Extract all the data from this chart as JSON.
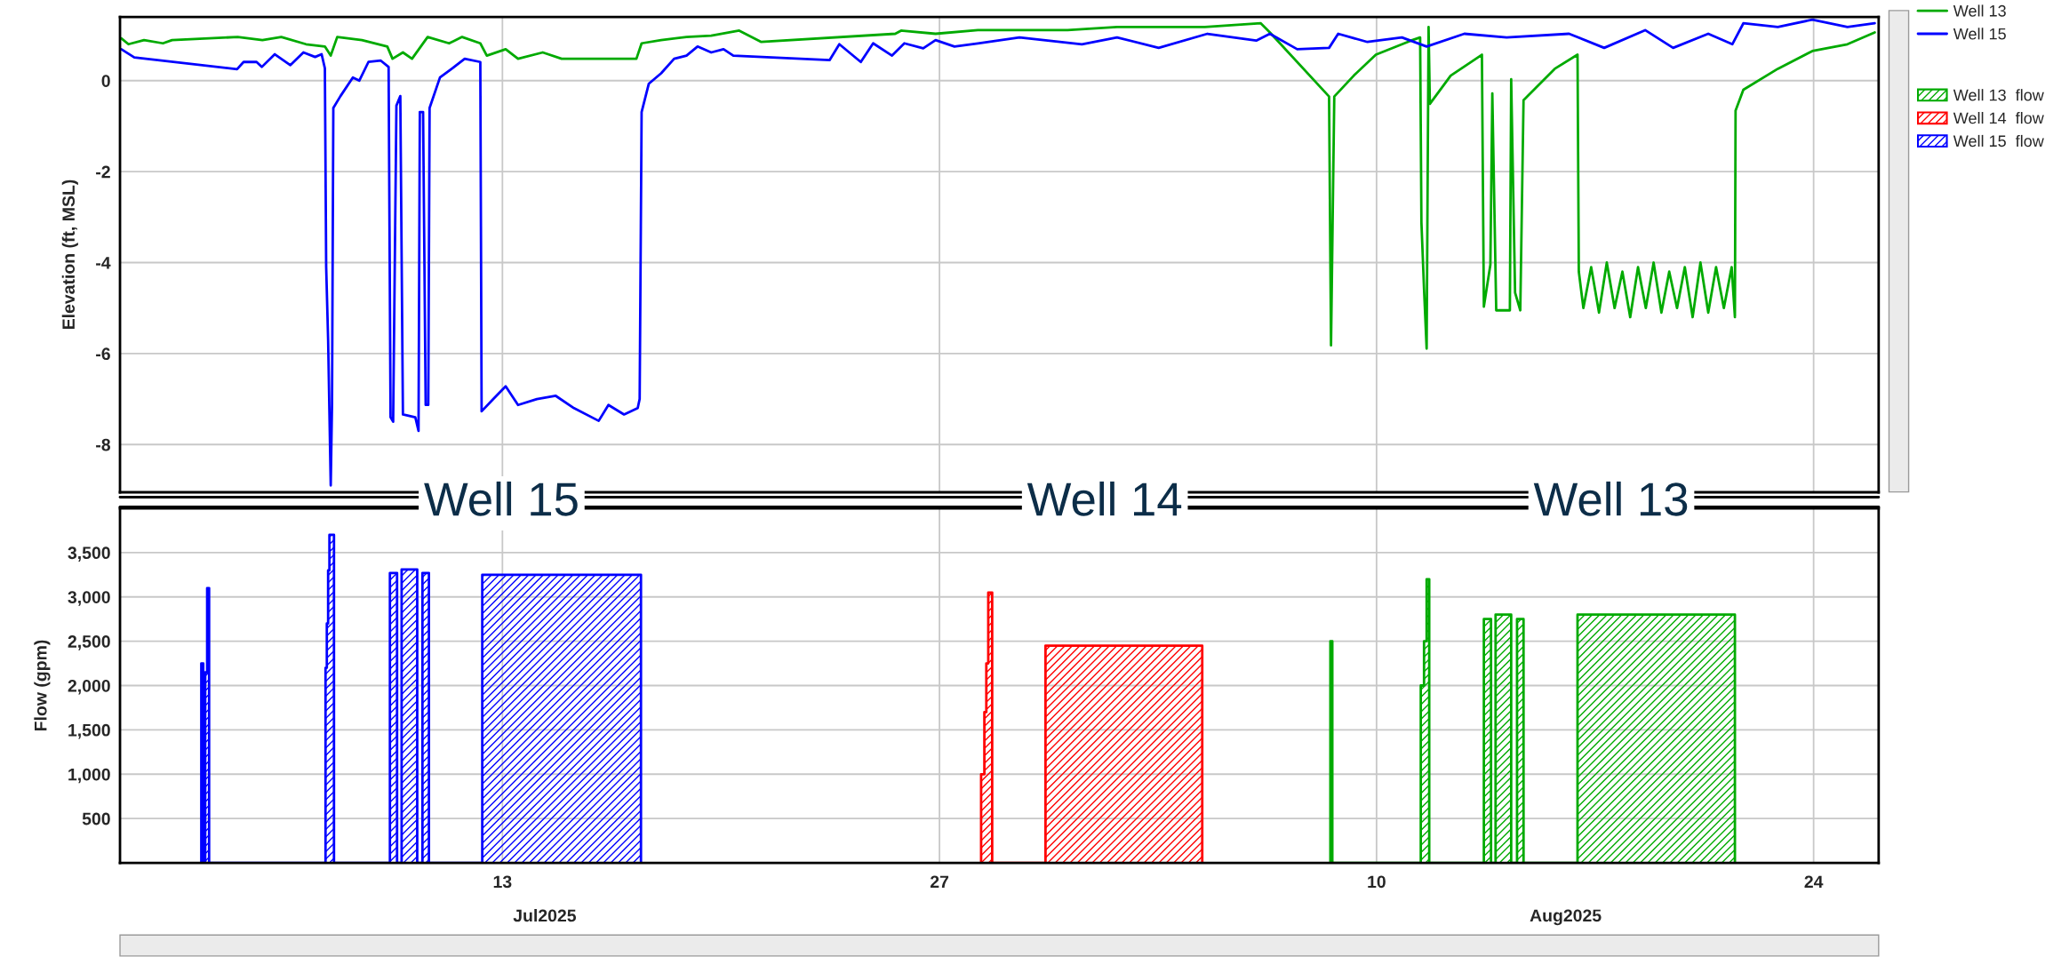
{
  "chart_data": [
    {
      "type": "line",
      "ylabel": "Elevation (ft, MSL)",
      "xlim": [
        "2025-06-30T18:00",
        "2025-08-26T02:00"
      ],
      "xticks": [
        {
          "value": "2025-07-13",
          "label": null
        },
        {
          "value": "2025-07-27",
          "label": null
        },
        {
          "value": "2025-08-10",
          "label": null
        },
        {
          "value": "2025-08-24",
          "label": null
        }
      ],
      "ylim": [
        -9.05,
        1.4
      ],
      "yticks": [
        -8,
        -6,
        -4,
        -2,
        0
      ],
      "grid": true,
      "legend": "right",
      "tick_labels": "y",
      "annotations": [
        "Well 15",
        "Well 14",
        "Well 13"
      ],
      "series": [
        {
          "name": "Well 13",
          "color": "#00aa00",
          "x": [
            "2025-06-30T19:00",
            "2025-07-01T00:30",
            "2025-07-01T12:30",
            "2025-07-02T03:00",
            "2025-07-02T10:00",
            "2025-07-04T12:30",
            "2025-07-05T07:30",
            "2025-07-05T22:00",
            "2025-07-06T17:00",
            "2025-07-07T07:30",
            "2025-07-07T12:00",
            "2025-07-07T17:00",
            "2025-07-08T12:00",
            "2025-07-09T07:30",
            "2025-07-09T11:30",
            "2025-07-09T19:30",
            "2025-07-10T02:30",
            "2025-07-10T14:30",
            "2025-07-11T07:00",
            "2025-07-11T17:00",
            "2025-07-12T07:00",
            "2025-07-12T12:00",
            "2025-07-13T02:30",
            "2025-07-13T12:00",
            "2025-07-14T07:00",
            "2025-07-14T21:30",
            "2025-07-16T02:00",
            "2025-07-17T07:00",
            "2025-07-17T11:00",
            "2025-07-18T02:00",
            "2025-07-18T21:30",
            "2025-07-19T16:30",
            "2025-07-20T14:00",
            "2025-07-21T07:00",
            "2025-07-25T14:00",
            "2025-07-25T18:30",
            "2025-07-26T21:00",
            "2025-07-28T05:30",
            "2025-07-31T02:30",
            "2025-08-01T16:30",
            "2025-08-04T12:00",
            "2025-08-06T07:00",
            "2025-08-06T14:00",
            "2025-08-08T11:30",
            "2025-08-08T13:00",
            "2025-08-08T15:30",
            "2025-08-09T06:30",
            "2025-08-09T23:30",
            "2025-08-11T02:30",
            "2025-08-11T09:30",
            "2025-08-11T10:30",
            "2025-08-11T12:30",
            "2025-08-11T14:30",
            "2025-08-11T16:00",
            "2025-08-11T17:00",
            "2025-08-12T09:00",
            "2025-08-13T09:00",
            "2025-08-13T10:30",
            "2025-08-13T15:30",
            "2025-08-13T17:00",
            "2025-08-13T20:00",
            "2025-08-14T06:30",
            "2025-08-14T07:30",
            "2025-08-14T10:30",
            "2025-08-14T14:30",
            "2025-08-14T17:00",
            "2025-08-15T01:00",
            "2025-08-15T17:00",
            "2025-08-16T10:30",
            "2025-08-16T11:30",
            "2025-08-16T15:00",
            "2025-08-16T21:00",
            "2025-08-17T03:00",
            "2025-08-17T09:00",
            "2025-08-17T15:00",
            "2025-08-17T21:00",
            "2025-08-18T03:00",
            "2025-08-18T09:00",
            "2025-08-18T15:00",
            "2025-08-18T21:00",
            "2025-08-19T03:00",
            "2025-08-19T09:00",
            "2025-08-19T15:00",
            "2025-08-19T21:00",
            "2025-08-20T03:00",
            "2025-08-20T09:00",
            "2025-08-20T15:00",
            "2025-08-20T21:00",
            "2025-08-21T03:00",
            "2025-08-21T09:00",
            "2025-08-21T11:30",
            "2025-08-21T12:00",
            "2025-08-21T18:00",
            "2025-08-22T20:30",
            "2025-08-23T23:00",
            "2025-08-25T02:00",
            "2025-08-25T23:00"
          ],
          "values": [
            0.93,
            0.8,
            0.89,
            0.82,
            0.89,
            0.96,
            0.89,
            0.96,
            0.8,
            0.75,
            0.55,
            0.96,
            0.89,
            0.75,
            0.48,
            0.62,
            0.48,
            0.96,
            0.82,
            0.96,
            0.82,
            0.55,
            0.69,
            0.48,
            0.62,
            0.48,
            0.48,
            0.48,
            0.82,
            0.89,
            0.96,
            0.99,
            1.1,
            0.85,
            1.03,
            1.1,
            1.03,
            1.11,
            1.11,
            1.18,
            1.18,
            1.26,
            1.06,
            -0.35,
            -5.82,
            -0.35,
            0.11,
            0.57,
            0.88,
            0.95,
            -3.12,
            -4.58,
            -5.89,
            1.18,
            -0.51,
            0.11,
            0.57,
            -4.97,
            -4.05,
            -0.28,
            -5.05,
            -5.05,
            0.03,
            -4.66,
            -5.05,
            -0.43,
            -0.2,
            0.26,
            0.57,
            -4.2,
            -5.0,
            -4.1,
            -5.1,
            -4.0,
            -5.0,
            -4.2,
            -5.2,
            -4.1,
            -5.0,
            -4.0,
            -5.1,
            -4.2,
            -5.0,
            -4.1,
            -5.2,
            -4.0,
            -5.1,
            -4.1,
            -5.0,
            -4.1,
            -5.2,
            -0.66,
            -0.2,
            0.26,
            0.65,
            0.8,
            1.06
          ]
        },
        {
          "name": "Well 15",
          "color": "#0000ff",
          "x": [
            "2025-06-30T19:00",
            "2025-07-01T05:00",
            "2025-07-04T12:00",
            "2025-07-04T17:00",
            "2025-07-05T03:00",
            "2025-07-05T07:00",
            "2025-07-05T17:00",
            "2025-07-06T05:00",
            "2025-07-06T15:00",
            "2025-07-07T00:00",
            "2025-07-07T05:00",
            "2025-07-07T07:30",
            "2025-07-07T08:30",
            "2025-07-07T10:00",
            "2025-07-07T11:00",
            "2025-07-07T12:00",
            "2025-07-07T13:00",
            "2025-07-07T14:00",
            "2025-07-07T19:30",
            "2025-07-08T05:00",
            "2025-07-08T10:00",
            "2025-07-08T17:00",
            "2025-07-09T02:30",
            "2025-07-09T08:30",
            "2025-07-09T10:00",
            "2025-07-09T12:00",
            "2025-07-09T14:30",
            "2025-07-09T17:30",
            "2025-07-09T19:30",
            "2025-07-10T05:00",
            "2025-07-10T07:30",
            "2025-07-10T08:30",
            "2025-07-10T11:00",
            "2025-07-10T13:00",
            "2025-07-10T15:00",
            "2025-07-10T16:00",
            "2025-07-11T00:00",
            "2025-07-11T09:30",
            "2025-07-11T19:00",
            "2025-07-12T07:00",
            "2025-07-12T08:00",
            "2025-07-12T17:00",
            "2025-07-13T02:30",
            "2025-07-13T12:00",
            "2025-07-14T02:30",
            "2025-07-14T17:00",
            "2025-07-15T07:00",
            "2025-07-16T02:00",
            "2025-07-16T09:30",
            "2025-07-16T21:30",
            "2025-07-17T08:00",
            "2025-07-17T09:30",
            "2025-07-17T11:00",
            "2025-07-17T16:30",
            "2025-07-18T02:00",
            "2025-07-18T12:00",
            "2025-07-18T21:30",
            "2025-07-19T06:00",
            "2025-07-19T16:30",
            "2025-07-20T02:00",
            "2025-07-20T09:30",
            "2025-07-23T11:30",
            "2025-07-23T19:00",
            "2025-07-24T11:30",
            "2025-07-24T21:00",
            "2025-07-25T11:30",
            "2025-07-25T21:00",
            "2025-07-26T11:30",
            "2025-07-26T21:00",
            "2025-07-27T11:30",
            "2025-07-28T05:30",
            "2025-07-29T13:30",
            "2025-07-31T13:30",
            "2025-08-01T16:30",
            "2025-08-03T00:30",
            "2025-08-04T14:00",
            "2025-08-06T03:30",
            "2025-08-06T14:00",
            "2025-08-07T11:00",
            "2025-08-08T11:30",
            "2025-08-08T18:30",
            "2025-08-09T17:00",
            "2025-08-10T19:30",
            "2025-08-11T14:30",
            "2025-08-12T19:30",
            "2025-08-14T04:00",
            "2025-08-16T04:00",
            "2025-08-17T07:00",
            "2025-08-18T14:30",
            "2025-08-19T12:00",
            "2025-08-20T15:00",
            "2025-08-21T09:30",
            "2025-08-21T18:00",
            "2025-08-22T20:30",
            "2025-08-23T23:00",
            "2025-08-25T02:00",
            "2025-08-25T23:00"
          ],
          "values": [
            0.69,
            0.51,
            0.25,
            0.41,
            0.41,
            0.3,
            0.58,
            0.34,
            0.62,
            0.52,
            0.58,
            0.27,
            -4.1,
            -5.7,
            -7.3,
            -8.9,
            -7.1,
            -0.6,
            -0.34,
            0.07,
            0.0,
            0.41,
            0.44,
            0.3,
            -7.4,
            -7.5,
            -0.55,
            -0.34,
            -7.34,
            -7.4,
            -7.7,
            -0.69,
            -0.69,
            -7.13,
            -7.13,
            -0.6,
            0.07,
            0.27,
            0.48,
            0.41,
            -7.27,
            -7.0,
            -6.72,
            -7.13,
            -7.0,
            -6.93,
            -7.2,
            -7.48,
            -7.13,
            -7.34,
            -7.2,
            -7.0,
            -0.69,
            -0.07,
            0.16,
            0.48,
            0.55,
            0.75,
            0.62,
            0.69,
            0.55,
            0.45,
            0.8,
            0.41,
            0.82,
            0.55,
            0.82,
            0.71,
            0.89,
            0.75,
            0.82,
            0.95,
            0.8,
            0.95,
            0.72,
            1.03,
            0.88,
            1.03,
            0.69,
            0.72,
            1.03,
            0.85,
            0.95,
            0.75,
            1.03,
            0.95,
            1.03,
            0.72,
            1.11,
            0.72,
            1.03,
            0.8,
            1.26,
            1.18,
            1.34,
            1.18,
            1.26
          ]
        }
      ]
    },
    {
      "type": "area",
      "ylabel": "Flow (gpm)",
      "xlim": [
        "2025-06-30T18:00",
        "2025-08-26T02:00"
      ],
      "xticks": [
        {
          "value": "2025-07-13",
          "label": "13"
        },
        {
          "value": "2025-07-27",
          "label": "27"
        },
        {
          "value": "2025-08-10",
          "label": "10"
        },
        {
          "value": "2025-08-24",
          "label": "24"
        }
      ],
      "ylim": [
        0,
        4000
      ],
      "yticks": [
        {
          "value": 500,
          "label": "500"
        },
        {
          "value": 1000,
          "label": "1,000"
        },
        {
          "value": 1500,
          "label": "1,500"
        },
        {
          "value": 2000,
          "label": "2,000"
        },
        {
          "value": 2500,
          "label": "2,500"
        },
        {
          "value": 3000,
          "label": "3,000"
        },
        {
          "value": 3500,
          "label": "3,500"
        }
      ],
      "grid": true,
      "legend": "right",
      "annotations": [
        "Jul2025",
        "Aug2025"
      ],
      "series": [
        {
          "name": "Well 13  flow",
          "color": "#00aa00",
          "x": [
            "2025-08-08T12:30",
            "2025-08-08T14:00",
            "2025-08-11T10:00",
            "2025-08-11T12:30",
            "2025-08-11T14:30",
            "2025-08-11T16:30",
            "2025-08-13T10:30",
            "2025-08-13T16:00",
            "2025-08-13T19:30",
            "2025-08-14T07:30",
            "2025-08-14T12:00",
            "2025-08-14T17:00",
            "2025-08-16T10:30",
            "2025-08-21T11:30"
          ],
          "values": [
            2500,
            0,
            2000,
            2500,
            3200,
            0,
            2750,
            0,
            2800,
            0,
            2750,
            0,
            2800,
            0
          ]
        },
        {
          "name": "Well 14  flow",
          "color": "#ff0000",
          "x": [
            "2025-07-28T08:00",
            "2025-07-28T10:30",
            "2025-07-28T12:00",
            "2025-07-28T13:30",
            "2025-07-28T16:30",
            "2025-07-30T09:30",
            "2025-08-04T10:00"
          ],
          "values": [
            1000,
            1700,
            2250,
            3050,
            0,
            2450,
            0
          ]
        },
        {
          "name": "Well 15  flow",
          "color": "#0000ff",
          "x": [
            "2025-07-03T08:30",
            "2025-07-03T10:00",
            "2025-07-03T11:30",
            "2025-07-03T13:00",
            "2025-07-03T14:30",
            "2025-07-07T08:00",
            "2025-07-07T09:00",
            "2025-07-07T10:00",
            "2025-07-07T11:00",
            "2025-07-07T14:30",
            "2025-07-09T09:30",
            "2025-07-09T15:00",
            "2025-07-09T18:30",
            "2025-07-10T06:30",
            "2025-07-10T10:30",
            "2025-07-10T15:30",
            "2025-07-12T08:30",
            "2025-07-17T10:30"
          ],
          "values": [
            2250,
            0,
            2150,
            3100,
            0,
            2200,
            2700,
            3300,
            3700,
            0,
            3270,
            0,
            3310,
            0,
            3270,
            0,
            3250,
            0
          ]
        }
      ]
    }
  ]
}
